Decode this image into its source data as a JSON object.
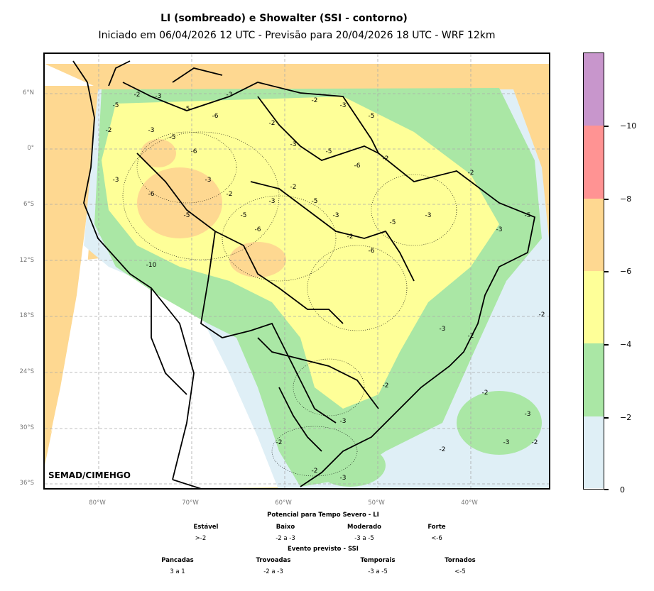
{
  "title": "LI (sombreado) e Showalter (SSI - contorno)",
  "subtitle": "Iniciado em 06/04/2026 12 UTC - Previsão para 20/04/2026 18 UTC - WRF 12km",
  "watermark": "SEMAD/CIMEHGO",
  "lat_labels": [
    "6°N",
    "0°",
    "6°S",
    "12°S",
    "18°S",
    "24°S",
    "30°S",
    "36°S"
  ],
  "lon_labels": [
    "80°W",
    "70°W",
    "60°W",
    "50°W",
    "40°W"
  ],
  "colorbar": {
    "ticks": [
      "−10",
      "−8",
      "−6",
      "−4",
      "−2",
      "0"
    ],
    "colors": [
      "#c896cc",
      "#ff9393",
      "#fed891",
      "#feff98",
      "#aae7a5",
      "#dfeff6"
    ]
  },
  "legend": {
    "li_title": "Potencial para Tempo Severo - LI",
    "li_items": [
      {
        "label": "Estável",
        "value": ">-2"
      },
      {
        "label": "Baixo",
        "value": "-2 a -3"
      },
      {
        "label": "Moderado",
        "value": "-3 a -5"
      },
      {
        "label": "Forte",
        "value": "<-6"
      }
    ],
    "ssi_title": "Evento previsto - SSI",
    "ssi_items": [
      {
        "label": "Pancadas",
        "value": "3 a 1"
      },
      {
        "label": "Trovoadas",
        "value": "-2 a -3"
      },
      {
        "label": "Temporais",
        "value": "-3 a -5"
      },
      {
        "label": "Tornados",
        "value": "<-5"
      }
    ]
  },
  "contour_labels": [
    "-2",
    "-3",
    "-5",
    "-6",
    "-3",
    "-5",
    "-2",
    "-3",
    "-5",
    "-6",
    "-2",
    "-3",
    "-5",
    "-2",
    "-3",
    "-5",
    "-6",
    "-2",
    "-3",
    "-6",
    "-10",
    "-5",
    "-3",
    "-2",
    "-5",
    "-6",
    "-3",
    "-2",
    "-5",
    "-3",
    "-2",
    "-6",
    "-5",
    "-3",
    "-2",
    "-3",
    "-5",
    "-2",
    "-3",
    "-2",
    "-2",
    "-3",
    "-2",
    "-3",
    "-2",
    "-2",
    "-3",
    "-2",
    "-2",
    "-3"
  ]
}
